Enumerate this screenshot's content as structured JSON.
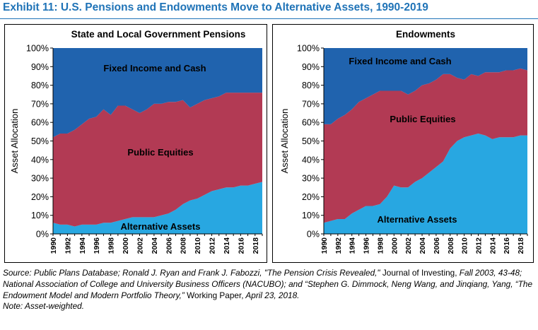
{
  "title": "Exhibit 11: U.S. Pensions and Endowments Move to Alternative Assets, 1990-2019",
  "colors": {
    "title": "#1f73b7",
    "alternative": "#28a7e1",
    "equities": "#b23a54",
    "fixed_income": "#2063ae"
  },
  "chart_data": [
    {
      "type": "area",
      "stacked": true,
      "title": "State and Local Government Pensions",
      "xlabel": "",
      "ylabel": "Asset Allocation",
      "ylim": [
        0,
        100
      ],
      "yticks": [
        "0%",
        "10%",
        "20%",
        "30%",
        "40%",
        "50%",
        "60%",
        "70%",
        "80%",
        "90%",
        "100%"
      ],
      "xticks": [
        "1990",
        "1992",
        "1994",
        "1996",
        "1998",
        "2000",
        "2002",
        "2004",
        "2006",
        "2008",
        "2010",
        "2012",
        "2014",
        "2016",
        "2018"
      ],
      "x": [
        1990,
        1991,
        1992,
        1993,
        1994,
        1995,
        1996,
        1997,
        1998,
        1999,
        2000,
        2001,
        2002,
        2003,
        2004,
        2005,
        2006,
        2007,
        2008,
        2009,
        2010,
        2011,
        2012,
        2013,
        2014,
        2015,
        2016,
        2017,
        2018,
        2019
      ],
      "series": [
        {
          "name": "Alternative Assets",
          "values": [
            6,
            5,
            5,
            4,
            5,
            5,
            5,
            6,
            6,
            7,
            8,
            9,
            9,
            9,
            9,
            10,
            11,
            13,
            16,
            18,
            19,
            21,
            23,
            24,
            25,
            25,
            26,
            26,
            27,
            28
          ]
        },
        {
          "name": "Public Equities",
          "values": [
            46,
            49,
            49,
            52,
            54,
            57,
            58,
            61,
            58,
            62,
            61,
            58,
            56,
            58,
            61,
            60,
            60,
            58,
            56,
            50,
            51,
            51,
            50,
            50,
            51,
            51,
            50,
            50,
            49,
            48
          ]
        },
        {
          "name": "Fixed Income and Cash",
          "values": [
            48,
            46,
            46,
            44,
            41,
            38,
            37,
            33,
            36,
            31,
            31,
            33,
            35,
            33,
            30,
            30,
            29,
            29,
            28,
            32,
            30,
            28,
            27,
            26,
            24,
            24,
            24,
            24,
            24,
            24
          ]
        }
      ],
      "annotations": [
        "Fixed Income and Cash",
        "Public Equities",
        "Alternative Assets"
      ]
    },
    {
      "type": "area",
      "stacked": true,
      "title": "Endowments",
      "xlabel": "",
      "ylabel": "Asset Allocation",
      "ylim": [
        0,
        100
      ],
      "yticks": [
        "0%",
        "10%",
        "20%",
        "30%",
        "40%",
        "50%",
        "60%",
        "70%",
        "80%",
        "90%",
        "100%"
      ],
      "xticks": [
        "1990",
        "1992",
        "1994",
        "1996",
        "1998",
        "2000",
        "2002",
        "2004",
        "2006",
        "2008",
        "2010",
        "2012",
        "2014",
        "2016",
        "2018"
      ],
      "x": [
        1990,
        1991,
        1992,
        1993,
        1994,
        1995,
        1996,
        1997,
        1998,
        1999,
        2000,
        2001,
        2002,
        2003,
        2004,
        2005,
        2006,
        2007,
        2008,
        2009,
        2010,
        2011,
        2012,
        2013,
        2014,
        2015,
        2016,
        2017,
        2018,
        2019
      ],
      "series": [
        {
          "name": "Alternative Assets",
          "values": [
            6,
            7,
            8,
            8,
            11,
            13,
            15,
            15,
            16,
            20,
            26,
            25,
            25,
            28,
            30,
            33,
            36,
            39,
            46,
            50,
            52,
            53,
            54,
            53,
            51,
            52,
            52,
            52,
            53,
            53
          ]
        },
        {
          "name": "Public Equities",
          "values": [
            53,
            52,
            54,
            56,
            56,
            58,
            58,
            60,
            61,
            57,
            51,
            52,
            50,
            49,
            50,
            48,
            47,
            47,
            40,
            34,
            31,
            33,
            31,
            34,
            36,
            35,
            36,
            36,
            36,
            35
          ]
        },
        {
          "name": "Fixed Income and Cash",
          "values": [
            41,
            41,
            38,
            36,
            33,
            29,
            27,
            25,
            23,
            23,
            23,
            23,
            25,
            23,
            20,
            19,
            17,
            14,
            14,
            16,
            17,
            14,
            15,
            13,
            13,
            13,
            12,
            12,
            11,
            12
          ]
        }
      ],
      "annotations": [
        "Fixed Income and Cash",
        "Public Equities",
        "Alternative Assets"
      ]
    }
  ],
  "source": {
    "line1_italic_a": "Source: Public Plans Database; Ronald J. Ryan and Frank J. Fabozzi, \"The Pension Crisis Revealed,\"",
    "line1_normal_a": " Journal of Investing,",
    "line1_italic_b": " Fall 2003, 43-48; National Association of College and University Business Officers (NACUBO); and “Stephen G. Dimmock, Neng Wang, and Jinqiang, Yang, “The Endowment Model and Modern Portfolio Theory,”",
    "line1_normal_b": " Working Paper,",
    "line1_italic_c": " April 23, 2018.",
    "note": "Note: Asset-weighted."
  }
}
